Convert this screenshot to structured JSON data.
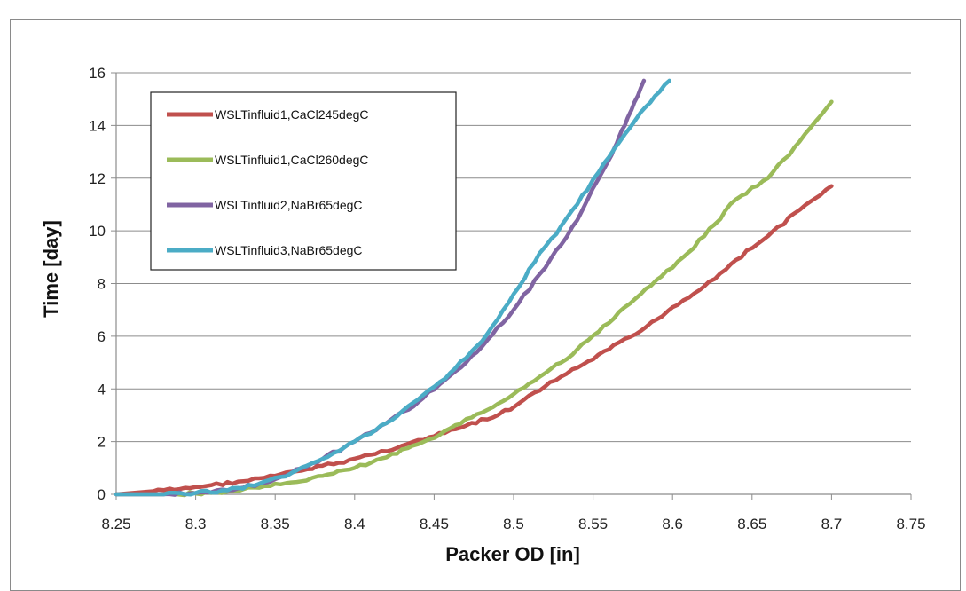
{
  "chart_data": {
    "type": "line",
    "title": "",
    "xlabel": "Packer OD [in]",
    "ylabel": "Time [day]",
    "xlim": [
      8.25,
      8.75
    ],
    "ylim": [
      0,
      16
    ],
    "xticks": [
      "8.25",
      "8.3",
      "8.35",
      "8.4",
      "8.45",
      "8.5",
      "8.55",
      "8.6",
      "8.65",
      "8.7",
      "8.75"
    ],
    "yticks": [
      "0",
      "2",
      "4",
      "6",
      "8",
      "10",
      "12",
      "14",
      "16"
    ],
    "grid": "horizontal",
    "legend": "top-left",
    "series": [
      {
        "name": "WSLTinfluid1,CaCl245degC",
        "color": "#c0504d",
        "x": [
          8.25,
          8.27,
          8.29,
          8.31,
          8.33,
          8.35,
          8.37,
          8.39,
          8.41,
          8.43,
          8.45,
          8.47,
          8.49,
          8.5,
          8.52,
          8.54,
          8.56,
          8.58,
          8.6,
          8.62,
          8.64,
          8.66,
          8.68,
          8.7
        ],
        "y": [
          0,
          0.1,
          0.2,
          0.35,
          0.5,
          0.7,
          0.95,
          1.2,
          1.5,
          1.85,
          2.2,
          2.6,
          3.0,
          3.3,
          4.1,
          4.8,
          5.5,
          6.2,
          7.1,
          7.9,
          8.9,
          9.8,
          10.8,
          11.7
        ]
      },
      {
        "name": "WSLTinfluid1,CaCl260degC",
        "color": "#9bbb59",
        "x": [
          8.25,
          8.28,
          8.3,
          8.32,
          8.34,
          8.36,
          8.38,
          8.4,
          8.42,
          8.44,
          8.46,
          8.48,
          8.5,
          8.52,
          8.54,
          8.56,
          8.58,
          8.6,
          8.62,
          8.64,
          8.66,
          8.68,
          8.7
        ],
        "y": [
          0,
          0,
          0.03,
          0.1,
          0.25,
          0.45,
          0.7,
          1.0,
          1.4,
          1.9,
          2.5,
          3.1,
          3.8,
          4.6,
          5.5,
          6.5,
          7.6,
          8.6,
          9.8,
          11.2,
          12.0,
          13.4,
          14.9
        ]
      },
      {
        "name": "WSLTinfluid2,NaBr65degC",
        "color": "#8064a2",
        "x": [
          8.25,
          8.28,
          8.3,
          8.32,
          8.34,
          8.36,
          8.38,
          8.4,
          8.42,
          8.44,
          8.46,
          8.48,
          8.5,
          8.52,
          8.54,
          8.56,
          8.57,
          8.582
        ],
        "y": [
          0,
          0,
          0.05,
          0.15,
          0.4,
          0.8,
          1.35,
          2.0,
          2.7,
          3.5,
          4.5,
          5.6,
          7.0,
          8.6,
          10.4,
          12.7,
          14.0,
          15.7
        ]
      },
      {
        "name": "WSLTinfluid3,NaBr65degC",
        "color": "#4bacc6",
        "x": [
          8.25,
          8.28,
          8.3,
          8.32,
          8.34,
          8.36,
          8.38,
          8.4,
          8.42,
          8.44,
          8.46,
          8.48,
          8.5,
          8.52,
          8.54,
          8.56,
          8.58,
          8.598
        ],
        "y": [
          0,
          0,
          0.05,
          0.15,
          0.4,
          0.8,
          1.35,
          2.0,
          2.7,
          3.6,
          4.6,
          5.8,
          7.6,
          9.4,
          11.0,
          12.8,
          14.5,
          15.7
        ]
      }
    ]
  }
}
